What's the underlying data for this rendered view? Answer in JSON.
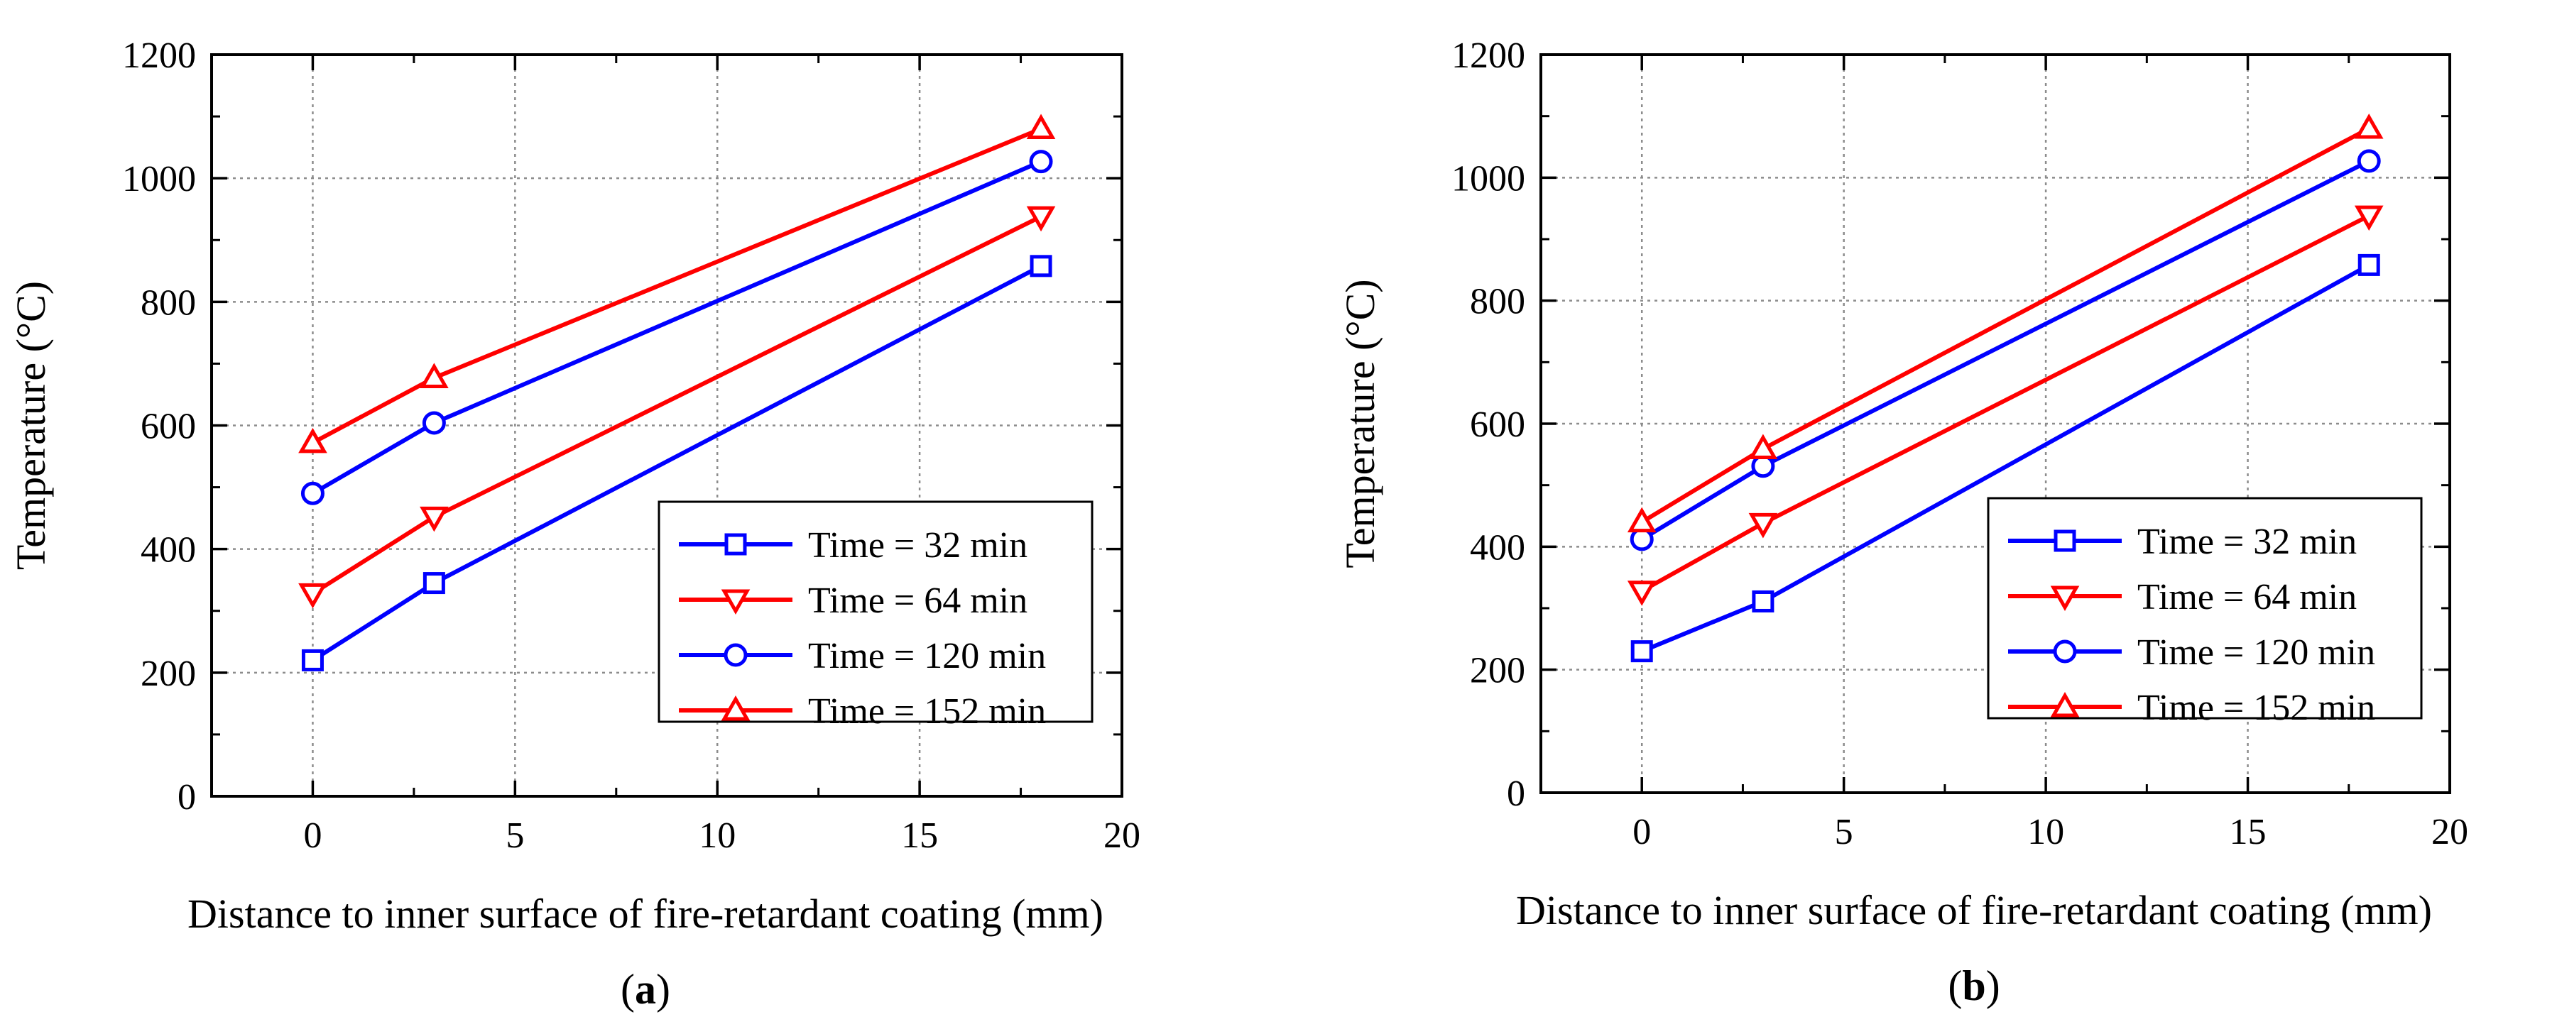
{
  "chart_data": [
    {
      "type": "line",
      "panel_label": "a",
      "xlabel": "Distance to inner surface of fire-retardant coating (mm)",
      "ylabel": "Temperature (°C)",
      "xlim": [
        -2.5,
        20
      ],
      "ylim": [
        0,
        1200
      ],
      "xticks": [
        0,
        5,
        10,
        15,
        20
      ],
      "yticks": [
        0,
        200,
        400,
        600,
        800,
        1000,
        1200
      ],
      "grid": true,
      "legend_position": "bottom-right",
      "series": [
        {
          "name": "Time = 32 min",
          "color": "#0000ff",
          "marker": "square",
          "x": [
            0,
            3,
            18
          ],
          "y": [
            220,
            345,
            858
          ]
        },
        {
          "name": "Time = 64 min",
          "color": "#ff0000",
          "marker": "triangle-down",
          "x": [
            0,
            3,
            18
          ],
          "y": [
            328,
            452,
            938
          ]
        },
        {
          "name": "Time = 120 min",
          "color": "#0000ff",
          "marker": "circle",
          "x": [
            0,
            3,
            18
          ],
          "y": [
            490,
            604,
            1027
          ]
        },
        {
          "name": "Time = 152 min",
          "color": "#ff0000",
          "marker": "triangle-up",
          "x": [
            0,
            3,
            18
          ],
          "y": [
            572,
            677,
            1080
          ]
        }
      ]
    },
    {
      "type": "line",
      "panel_label": "b",
      "xlabel": "Distance to inner surface of fire-retardant coating (mm)",
      "ylabel": "Temperature (°C)",
      "xlim": [
        -2.5,
        20
      ],
      "ylim": [
        0,
        1200
      ],
      "xticks": [
        0,
        5,
        10,
        15,
        20
      ],
      "yticks": [
        0,
        200,
        400,
        600,
        800,
        1000,
        1200
      ],
      "grid": true,
      "legend_position": "bottom-right",
      "series": [
        {
          "name": "Time = 32 min",
          "color": "#0000ff",
          "marker": "square",
          "x": [
            0,
            3,
            18
          ],
          "y": [
            230,
            311,
            858
          ]
        },
        {
          "name": "Time = 64 min",
          "color": "#ff0000",
          "marker": "triangle-down",
          "x": [
            0,
            3,
            18
          ],
          "y": [
            328,
            438,
            938
          ]
        },
        {
          "name": "Time = 120 min",
          "color": "#0000ff",
          "marker": "circle",
          "x": [
            0,
            3,
            18
          ],
          "y": [
            412,
            531,
            1027
          ]
        },
        {
          "name": "Time = 152 min",
          "color": "#ff0000",
          "marker": "triangle-up",
          "x": [
            0,
            3,
            18
          ],
          "y": [
            440,
            559,
            1080
          ]
        }
      ]
    }
  ]
}
